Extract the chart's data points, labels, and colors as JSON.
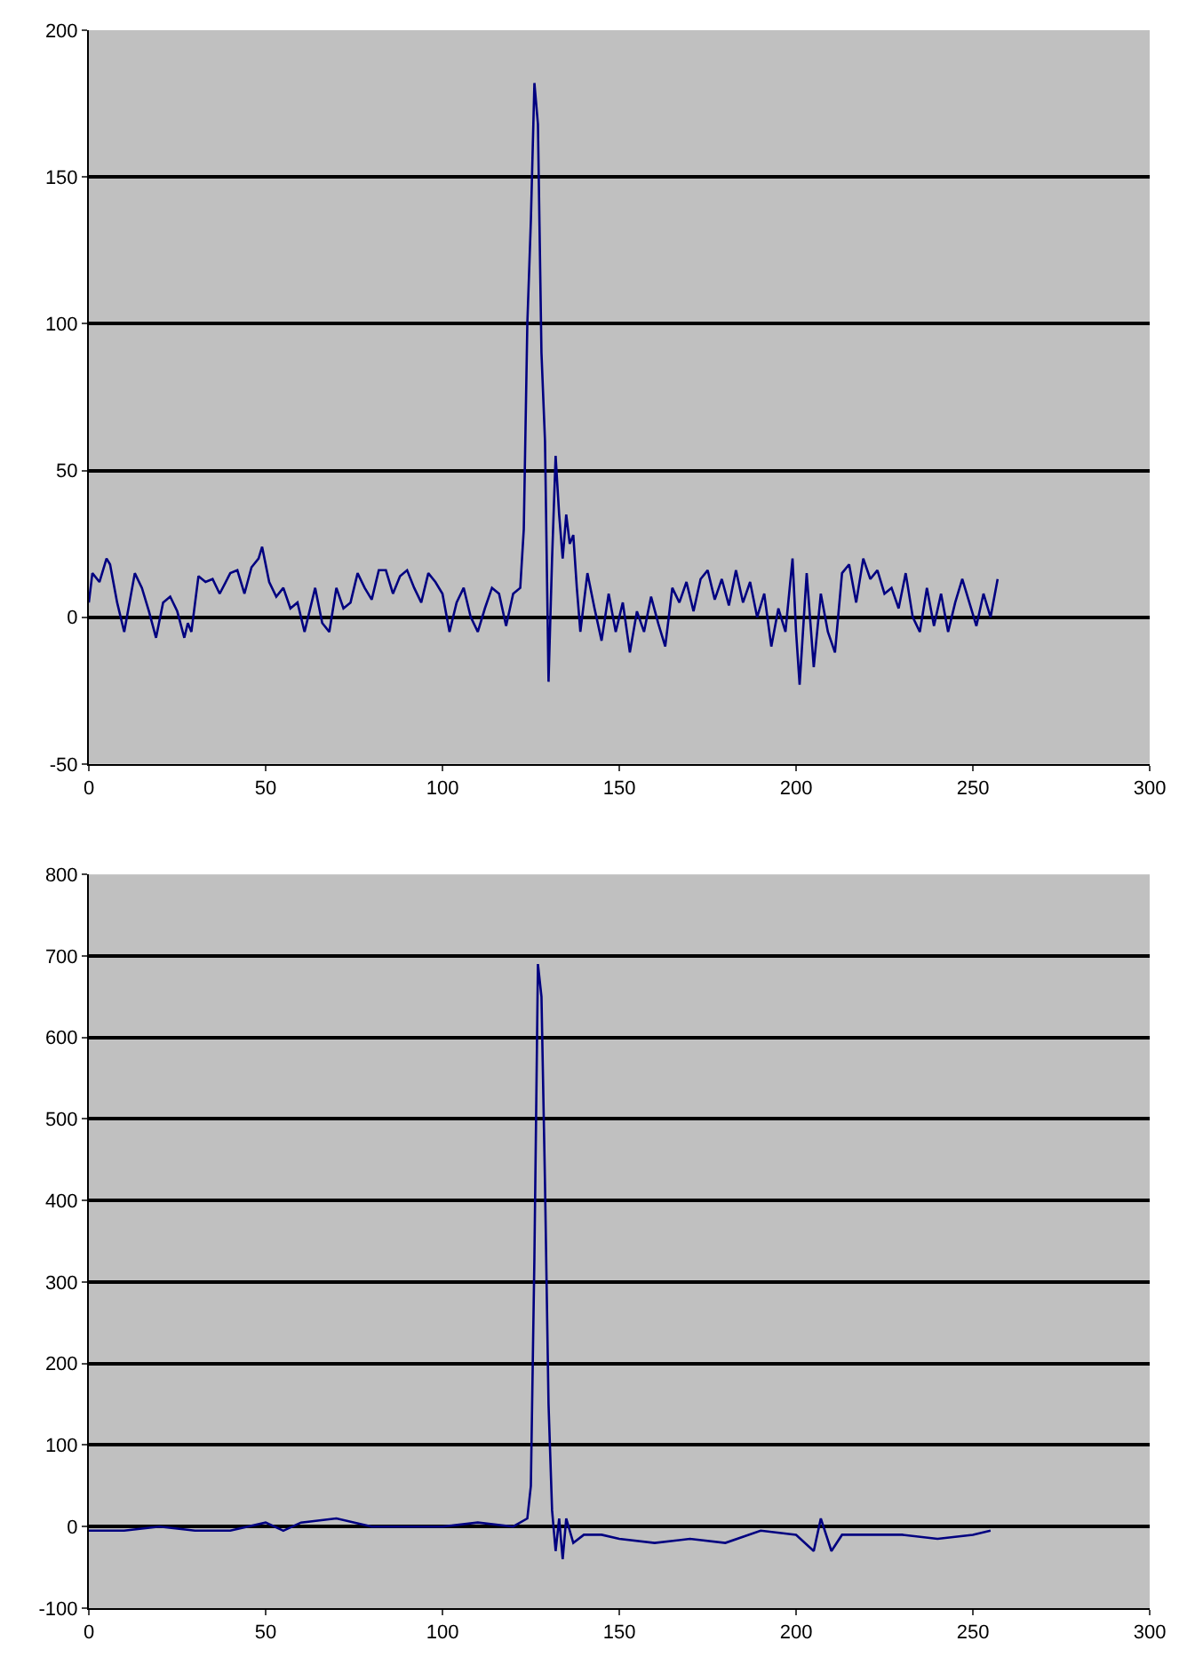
{
  "chart_data": [
    {
      "type": "line",
      "color": "#000080",
      "grid": "y",
      "xlim": [
        0,
        300
      ],
      "xticks": [
        0,
        50,
        100,
        150,
        200,
        250,
        300
      ],
      "ylim": [
        -50,
        200
      ],
      "yticks": [
        -50,
        0,
        50,
        100,
        150,
        200
      ],
      "x": [
        0,
        1,
        3,
        5,
        6,
        8,
        10,
        13,
        15,
        17,
        19,
        21,
        23,
        25,
        27,
        28,
        29,
        31,
        33,
        35,
        37,
        40,
        42,
        44,
        46,
        48,
        49,
        51,
        53,
        55,
        57,
        59,
        61,
        64,
        66,
        68,
        70,
        72,
        74,
        76,
        78,
        80,
        82,
        84,
        86,
        88,
        90,
        92,
        94,
        96,
        98,
        100,
        102,
        104,
        106,
        108,
        110,
        112,
        114,
        116,
        118,
        120,
        122,
        123,
        124,
        125,
        126,
        127,
        128,
        129,
        130,
        131,
        132,
        133,
        134,
        135,
        136,
        137,
        138,
        139,
        141,
        143,
        145,
        147,
        149,
        151,
        153,
        155,
        157,
        159,
        161,
        163,
        165,
        167,
        169,
        171,
        173,
        175,
        177,
        179,
        181,
        183,
        185,
        187,
        189,
        191,
        193,
        195,
        197,
        199,
        200,
        201,
        203,
        205,
        207,
        209,
        211,
        213,
        215,
        217,
        219,
        221,
        223,
        225,
        227,
        229,
        231,
        233,
        235,
        237,
        239,
        241,
        243,
        245,
        247,
        249,
        251,
        253,
        255,
        257
      ],
      "values": [
        5,
        15,
        12,
        20,
        18,
        5,
        -5,
        15,
        10,
        2,
        -7,
        5,
        7,
        2,
        -7,
        -2,
        -5,
        14,
        12,
        13,
        8,
        15,
        16,
        8,
        17,
        20,
        24,
        12,
        7,
        10,
        3,
        5,
        -5,
        10,
        -2,
        -5,
        10,
        3,
        5,
        15,
        10,
        6,
        16,
        16,
        8,
        14,
        16,
        10,
        5,
        15,
        12,
        8,
        -5,
        5,
        10,
        0,
        -5,
        3,
        10,
        8,
        -3,
        8,
        10,
        30,
        100,
        135,
        182,
        168,
        90,
        60,
        -22,
        20,
        55,
        35,
        20,
        35,
        25,
        28,
        10,
        -5,
        15,
        3,
        -8,
        8,
        -5,
        5,
        -12,
        2,
        -5,
        7,
        -2,
        -10,
        10,
        5,
        12,
        2,
        13,
        16,
        6,
        13,
        4,
        16,
        5,
        12,
        0,
        8,
        -10,
        3,
        -5,
        20,
        -5,
        -23,
        15,
        -17,
        8,
        -5,
        -12,
        15,
        18,
        5,
        20,
        13,
        16,
        8,
        10,
        3,
        15,
        0,
        -5,
        10,
        -3,
        8,
        -5,
        5,
        13,
        5,
        -3,
        8,
        0,
        13
      ]
    },
    {
      "type": "line",
      "color": "#000080",
      "grid": "y",
      "xlim": [
        0,
        300
      ],
      "xticks": [
        0,
        50,
        100,
        150,
        200,
        250,
        300
      ],
      "ylim": [
        -100,
        800
      ],
      "yticks": [
        -100,
        0,
        100,
        200,
        300,
        400,
        500,
        600,
        700,
        800
      ],
      "x": [
        0,
        10,
        20,
        30,
        40,
        50,
        55,
        60,
        70,
        80,
        90,
        100,
        110,
        120,
        124,
        125,
        126,
        127,
        128,
        129,
        130,
        131,
        132,
        133,
        134,
        135,
        137,
        140,
        145,
        150,
        160,
        170,
        180,
        190,
        200,
        205,
        207,
        210,
        213,
        220,
        230,
        240,
        250,
        255
      ],
      "values": [
        -5,
        -5,
        0,
        -5,
        -5,
        5,
        -5,
        5,
        10,
        0,
        0,
        0,
        5,
        0,
        10,
        50,
        330,
        690,
        650,
        420,
        150,
        20,
        -30,
        10,
        -40,
        10,
        -20,
        -10,
        -10,
        -15,
        -20,
        -15,
        -20,
        -5,
        -10,
        -30,
        10,
        -30,
        -10,
        -10,
        -10,
        -15,
        -10,
        -5
      ]
    }
  ]
}
